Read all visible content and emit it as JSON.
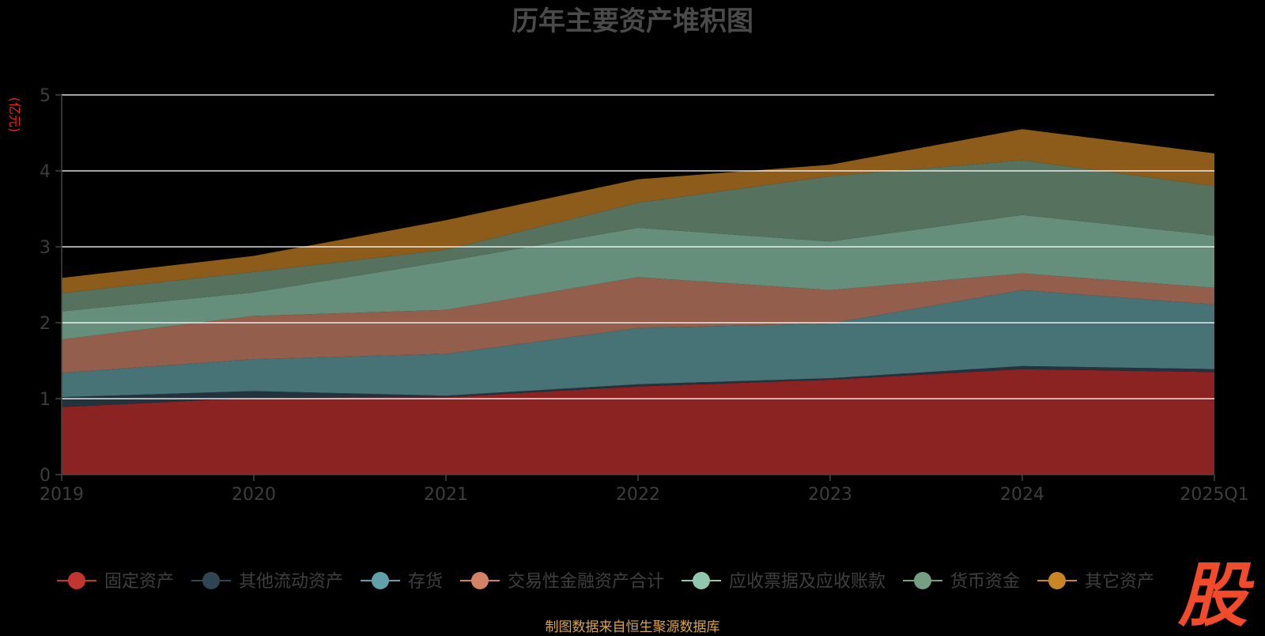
{
  "chart_data": {
    "type": "area",
    "stacked": true,
    "title": "历年主要资产堆积图",
    "ylabel": "(亿元)",
    "xlabel": "",
    "categories": [
      "2019",
      "2020",
      "2021",
      "2022",
      "2023",
      "2024",
      "2025Q1"
    ],
    "ylim": [
      0,
      5
    ],
    "yticks": [
      0,
      1,
      2,
      3,
      4,
      5
    ],
    "grid": true,
    "legend_position": "bottom",
    "series": [
      {
        "name": "固定资产",
        "color": "#c23531",
        "area_color": "#8b2323",
        "values": [
          0.89,
          1.01,
          1.02,
          1.16,
          1.25,
          1.39,
          1.35
        ]
      },
      {
        "name": "其他流动资产",
        "color": "#2f4554",
        "area_color": "#22333e",
        "values": [
          0.13,
          0.09,
          0.02,
          0.03,
          0.02,
          0.04,
          0.04
        ]
      },
      {
        "name": "存货",
        "color": "#61a0a8",
        "area_color": "#477377",
        "values": [
          0.32,
          0.42,
          0.55,
          0.74,
          0.72,
          1.0,
          0.85
        ]
      },
      {
        "name": "交易性金融资产合计",
        "color": "#d48265",
        "area_color": "#935e4b",
        "values": [
          0.44,
          0.57,
          0.58,
          0.67,
          0.44,
          0.22,
          0.22
        ]
      },
      {
        "name": "应收票据及应收账款",
        "color": "#91c7ae",
        "area_color": "#658f7b",
        "values": [
          0.37,
          0.31,
          0.64,
          0.65,
          0.64,
          0.77,
          0.69
        ]
      },
      {
        "name": "货币资金",
        "color": "#749f83",
        "area_color": "#56725e",
        "values": [
          0.24,
          0.27,
          0.15,
          0.33,
          0.86,
          0.72,
          0.65
        ]
      },
      {
        "name": "其它资产",
        "color": "#ca8622",
        "area_color": "#8e5c1a",
        "values": [
          0.2,
          0.21,
          0.39,
          0.31,
          0.15,
          0.41,
          0.43
        ]
      }
    ]
  },
  "footer": {
    "source": "制图数据来自恒生聚源数据库"
  },
  "logo": {
    "text": "股"
  }
}
